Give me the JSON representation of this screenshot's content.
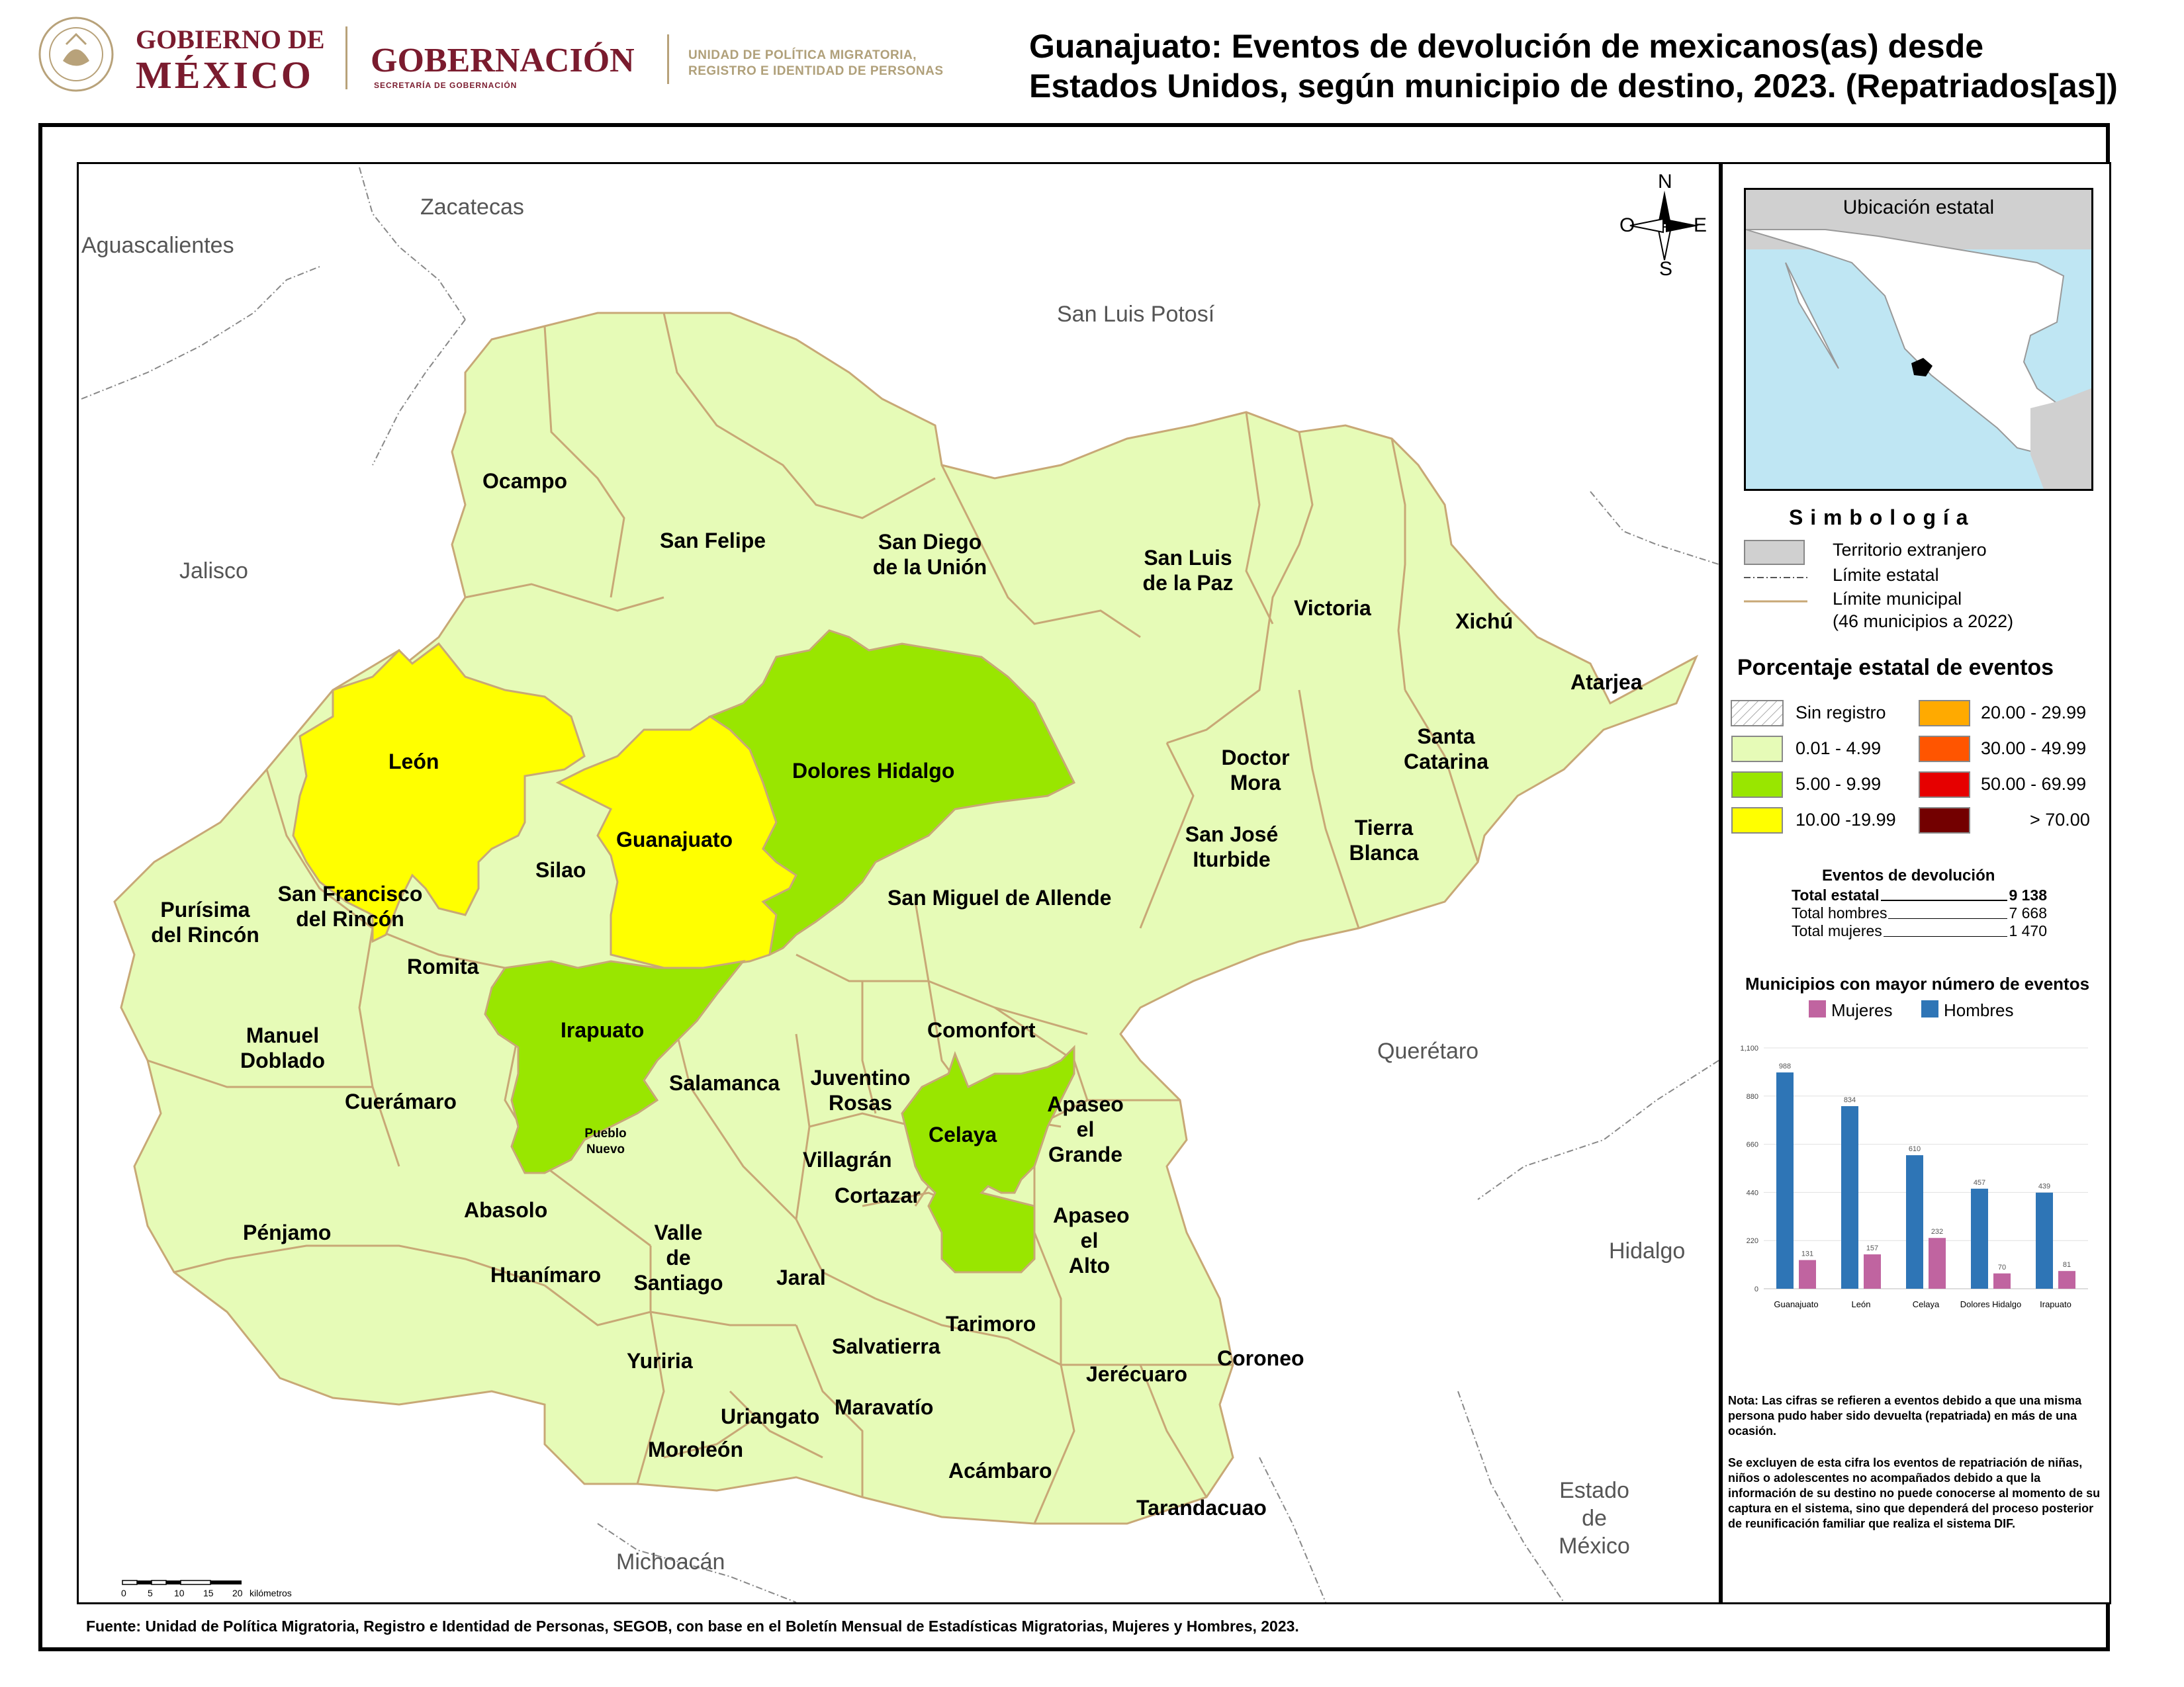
{
  "header": {
    "gov_line1": "GOBIERNO DE",
    "gov_line2": "MÉXICO",
    "seal_text": "ESTADOS UNIDOS MEXICANOS",
    "secretaria": "GOBERNACIÓN",
    "secretaria_sub": "SECRETARÍA DE GOBERNACIÓN",
    "unit_line1": "UNIDAD DE POLÍTICA MIGRATORIA,",
    "unit_line2": "REGISTRO E IDENTIDAD DE PERSONAS",
    "title_line1": "Guanajuato: Eventos de devolución de mexicanos(as) desde",
    "title_line2": "Estados Unidos, según municipio de destino, 2023. (Repatriados[as])"
  },
  "map": {
    "neighbor_states": {
      "zacatecas": "Zacatecas",
      "aguascalientes": "Aguascalientes",
      "slp": "San Luis Potosí",
      "jalisco": "Jalisco",
      "queretaro": "Querétaro",
      "hidalgo": "Hidalgo",
      "michoacan": "Michoacán",
      "edomex_1": "Estado",
      "edomex_2": "de",
      "edomex_3": "México"
    },
    "colors": {
      "range_0_01_4_99": "#e6fbb7",
      "range_5_9_99": "#99e600",
      "range_10_19_99": "#ffff00",
      "border": "#c8a876"
    },
    "municipalities": {
      "ocampo": {
        "name": "Ocampo",
        "class": "0.01 - 4.99"
      },
      "san_felipe": {
        "name": "San Felipe",
        "class": "0.01 - 4.99"
      },
      "san_diego_1": "San Diego",
      "san_diego_2": "de la Unión",
      "slp_paz_1": "San Luis",
      "slp_paz_2": "de la Paz",
      "victoria": "Victoria",
      "xichu": "Xichú",
      "atarjea": "Atarjea",
      "santa_catarina_1": "Santa",
      "santa_catarina_2": "Catarina",
      "doctor_mora_1": "Doctor",
      "doctor_mora_2": "Mora",
      "tierra_blanca_1": "Tierra",
      "tierra_blanca_2": "Blanca",
      "san_jose_1": "San José",
      "san_jose_2": "Iturbide",
      "leon": {
        "name": "León",
        "class": "10.00 -19.99"
      },
      "guanajuato": {
        "name": "Guanajuato",
        "class": "10.00 -19.99"
      },
      "dolores": {
        "name": "Dolores Hidalgo",
        "class": "5.00 - 9.99"
      },
      "silao": "Silao",
      "san_miguel": "San Miguel de Allende",
      "purisima_1": "Purísima",
      "purisima_2": "del Rincón",
      "sfr_1": "San Francisco",
      "sfr_2": "del Rincón",
      "romita": "Romita",
      "irapuato": {
        "name": "Irapuato",
        "class": "5.00 - 9.99"
      },
      "pueblo_nuevo_1": "Pueblo",
      "pueblo_nuevo_2": "Nuevo",
      "manuel_doblado_1": "Manuel",
      "manuel_doblado_2": "Doblado",
      "cueramaro": "Cuerámaro",
      "salamanca": "Salamanca",
      "comonfort": "Comonfort",
      "juventino_1": "Juventino",
      "juventino_2": "Rosas",
      "celaya": {
        "name": "Celaya",
        "class": "5.00 - 9.99"
      },
      "apaseo_grande_1": "Apaseo",
      "apaseo_grande_2": "el",
      "apaseo_grande_3": "Grande",
      "villagran": "Villagrán",
      "cortazar": "Cortazar",
      "apaseo_alto_1": "Apaseo",
      "apaseo_alto_2": "el",
      "apaseo_alto_3": "Alto",
      "penjamo": "Pénjamo",
      "abasolo": "Abasolo",
      "valle_1": "Valle",
      "valle_2": "de",
      "valle_3": "Santiago",
      "huanimaro": "Huanímaro",
      "jaral": "Jaral",
      "tarimoro": "Tarimoro",
      "salvatierra": "Salvatierra",
      "yuriria": "Yuriria",
      "jerecuaro": "Jerécuaro",
      "coroneo": "Coroneo",
      "uriangato": "Uriangato",
      "maravatio": "Maravatío",
      "moroleon": "Moroleón",
      "acambaro": "Acámbaro",
      "tarandacuao": "Tarandacuao"
    },
    "compass": {
      "n": "N",
      "s": "S",
      "e": "E",
      "o": "O"
    },
    "scale": {
      "ticks": [
        "0",
        "5",
        "10",
        "15",
        "20"
      ],
      "unit": "kilómetros"
    }
  },
  "inset": {
    "title": "Ubicación estatal"
  },
  "legend": {
    "title": "S i m b o l o g í a",
    "foreign": "Territorio extranjero",
    "state_limit": "Límite estatal",
    "mun_limit": "Límite municipal",
    "mun_limit_sub": "(46 municipios a 2022)",
    "pct_title": "Porcentaje estatal de eventos",
    "classes": [
      {
        "label": "Sin registro",
        "color": "#ffffff"
      },
      {
        "label": "0.01  - 4.99",
        "color": "#e6fbb7"
      },
      {
        "label": "5.00  - 9.99",
        "color": "#99e600"
      },
      {
        "label": "10.00 -19.99",
        "color": "#ffff00"
      },
      {
        "label": "20.00 - 29.99",
        "color": "#ffaa00"
      },
      {
        "label": "30.00 - 49.99",
        "color": "#ff5500"
      },
      {
        "label": "50.00 - 69.99",
        "color": "#e60000"
      },
      {
        "label": "> 70.00",
        "color": "#730000"
      }
    ]
  },
  "totals": {
    "title": "Eventos de devolución",
    "state_label": "Total estatal",
    "state_value": "9 138",
    "men_label": "Total hombres",
    "men_value": "7 668",
    "women_label": "Total mujeres",
    "women_value": "1 470"
  },
  "chart_data": {
    "type": "bar",
    "title": "Municipios con mayor número de eventos",
    "categories": [
      "Guanajuato",
      "León",
      "Celaya",
      "Dolores Hidalgo",
      "Irapuato"
    ],
    "series": [
      {
        "name": "Hombres",
        "values": [
          988,
          834,
          610,
          457,
          439
        ],
        "color": "#2e75b6"
      },
      {
        "name": "Mujeres",
        "values": [
          131,
          157,
          232,
          70,
          81
        ],
        "color": "#c064a0"
      }
    ],
    "yticks": [
      "0",
      "220",
      "440",
      "660",
      "880",
      "1,100"
    ],
    "ylim": [
      0,
      1100
    ],
    "legend": "top",
    "grid": true
  },
  "notes": {
    "note1": "Nota: Las cifras se refieren a eventos debido a que una misma persona pudo haber sido devuelta (repatriada) en más de una ocasión.",
    "note2": "Se excluyen de esta cifra los eventos de repatriación de niñas, niños o adolescentes no acompañados debido a que la información de su destino no puede conocerse al momento de su captura en el sistema, sino que dependerá del proceso posterior de reunificación familiar que realiza el sistema DIF."
  },
  "source": "Fuente: Unidad de Política Migratoria, Registro e Identidad de Personas, SEGOB, con base en el Boletín Mensual de Estadísticas Migratorias, Mujeres y Hombres, 2023."
}
